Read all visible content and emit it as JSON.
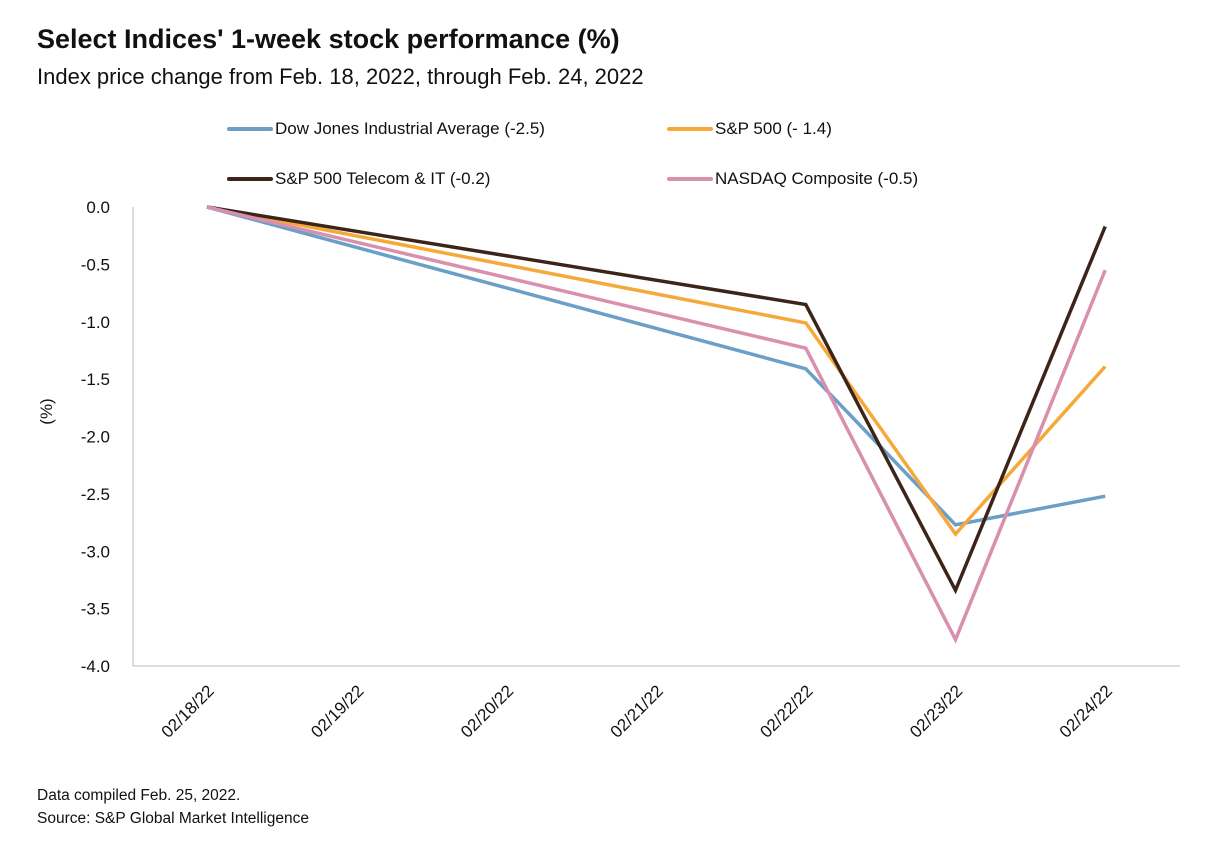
{
  "chart_data": {
    "type": "line",
    "title": "Select Indices' 1-week stock performance (%)",
    "subtitle": "Index price change from Feb. 18, 2022, through Feb. 24, 2022",
    "xlabel": "",
    "ylabel": "(%)",
    "ylim": [
      -4.0,
      0.0
    ],
    "yticks": [
      "0.0",
      "-0.5",
      "-1.0",
      "-1.5",
      "-2.0",
      "-2.5",
      "-3.0",
      "-3.5",
      "-4.0"
    ],
    "grid": false,
    "legend_position": "top",
    "x": [
      "02/18/22",
      "02/19/22",
      "02/20/22",
      "02/21/22",
      "02/22/22",
      "02/23/22",
      "02/24/22"
    ],
    "series": [
      {
        "name": "Dow Jones Industrial Average (-2.5)",
        "color": "#6a9fc8",
        "values": [
          0,
          null,
          null,
          null,
          -1.41,
          -2.77,
          -2.52
        ]
      },
      {
        "name": "S&P 500 (- 1.4)",
        "color": "#f5a93a",
        "values": [
          0,
          null,
          null,
          null,
          -1.01,
          -2.85,
          -1.39
        ]
      },
      {
        "name": "S&P 500 Telecom & IT (-0.2)",
        "color": "#3d2419",
        "values": [
          0,
          null,
          null,
          null,
          -0.85,
          -3.34,
          -0.17
        ]
      },
      {
        "name": "NASDAQ Composite (-0.5)",
        "color": "#d98fae",
        "values": [
          0,
          null,
          null,
          null,
          -1.23,
          -3.77,
          -0.55
        ]
      }
    ]
  },
  "footer": {
    "note": "Data compiled Feb. 25, 2022.",
    "source": "Source: S&P Global Market Intelligence"
  }
}
